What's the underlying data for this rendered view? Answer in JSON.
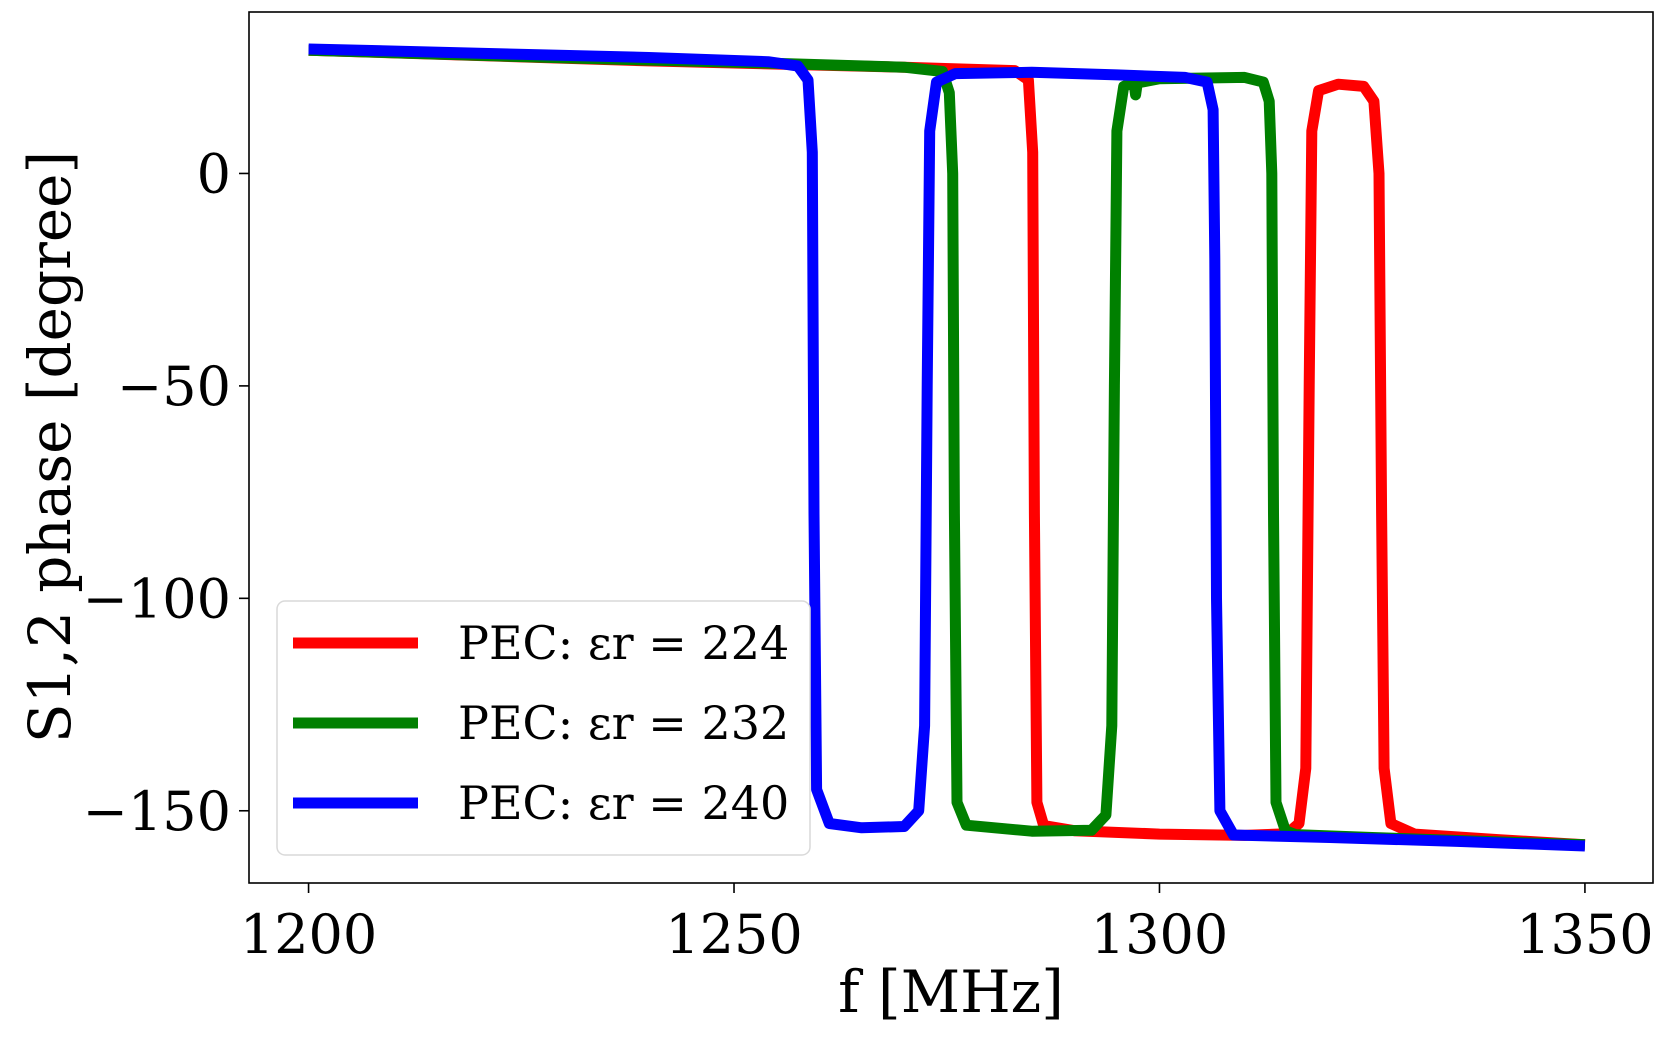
{
  "chart_data": {
    "type": "line",
    "title": "",
    "xlabel": "f [MHz]",
    "ylabel": "S1,2 phase [degree]",
    "xlim": [
      1193,
      1358
    ],
    "ylim": [
      -167,
      38
    ],
    "xticks": [
      1200,
      1250,
      1300,
      1350
    ],
    "yticks": [
      0,
      -50,
      -100,
      -150
    ],
    "xtick_labels": [
      "1200",
      "1250",
      "1300",
      "1350"
    ],
    "ytick_labels": [
      "0",
      "−50",
      "−100",
      "−150"
    ],
    "legend_position": "lower-left",
    "series": [
      {
        "name": "PEC: εr = 224",
        "color": "#ff0000",
        "points": [
          [
            1200,
            29
          ],
          [
            1240,
            26.5
          ],
          [
            1270,
            25
          ],
          [
            1283,
            24.2
          ],
          [
            1284.6,
            22
          ],
          [
            1285.1,
            5
          ],
          [
            1285.3,
            -80
          ],
          [
            1285.6,
            -148
          ],
          [
            1286.4,
            -153.5
          ],
          [
            1290,
            -154.7
          ],
          [
            1300,
            -155.5
          ],
          [
            1310,
            -155.8
          ],
          [
            1315,
            -155.4
          ],
          [
            1316.4,
            -153
          ],
          [
            1317.2,
            -140
          ],
          [
            1317.6,
            -50
          ],
          [
            1317.9,
            10
          ],
          [
            1318.7,
            19.5
          ],
          [
            1321,
            21
          ],
          [
            1324,
            20.5
          ],
          [
            1325.2,
            17
          ],
          [
            1325.8,
            0
          ],
          [
            1326.1,
            -80
          ],
          [
            1326.4,
            -140
          ],
          [
            1327.2,
            -153
          ],
          [
            1330,
            -155.5
          ],
          [
            1340,
            -156.8
          ],
          [
            1350,
            -158
          ]
        ]
      },
      {
        "name": "PEC: εr = 232",
        "color": "#008000",
        "points": [
          [
            1200,
            29
          ],
          [
            1230,
            27.2
          ],
          [
            1255,
            25.9
          ],
          [
            1270,
            25
          ],
          [
            1274.5,
            24
          ],
          [
            1275.3,
            19
          ],
          [
            1275.7,
            0
          ],
          [
            1275.9,
            -80
          ],
          [
            1276.2,
            -148
          ],
          [
            1277.3,
            -153.4
          ],
          [
            1285,
            -154.8
          ],
          [
            1292,
            -154.6
          ],
          [
            1293.7,
            -151
          ],
          [
            1294.4,
            -130
          ],
          [
            1294.7,
            -50
          ],
          [
            1295,
            10
          ],
          [
            1295.8,
            20.5
          ],
          [
            1297,
            21.5
          ],
          [
            1297.2,
            18.5
          ],
          [
            1297.4,
            21.3
          ],
          [
            1300,
            22.3
          ],
          [
            1310,
            22.6
          ],
          [
            1312.2,
            21.5
          ],
          [
            1312.9,
            17
          ],
          [
            1313.2,
            0
          ],
          [
            1313.4,
            -80
          ],
          [
            1313.7,
            -148
          ],
          [
            1314.8,
            -154.7
          ],
          [
            1316,
            -155.6
          ],
          [
            1325,
            -156.3
          ],
          [
            1335,
            -157
          ],
          [
            1350,
            -158
          ]
        ]
      },
      {
        "name": "PEC: εr = 240",
        "color": "#0000ff",
        "points": [
          [
            1200,
            29.3
          ],
          [
            1220,
            28.3
          ],
          [
            1240,
            27.3
          ],
          [
            1254,
            26.3
          ],
          [
            1257.5,
            25.3
          ],
          [
            1258.7,
            22
          ],
          [
            1259.2,
            5
          ],
          [
            1259.4,
            -80
          ],
          [
            1259.7,
            -145
          ],
          [
            1261.2,
            -153
          ],
          [
            1265,
            -154
          ],
          [
            1270,
            -153.7
          ],
          [
            1271.7,
            -150
          ],
          [
            1272.4,
            -130
          ],
          [
            1272.7,
            -50
          ],
          [
            1273,
            10
          ],
          [
            1273.8,
            21.5
          ],
          [
            1276,
            23.5
          ],
          [
            1285,
            23.8
          ],
          [
            1295,
            23.2
          ],
          [
            1303,
            22.6
          ],
          [
            1305.6,
            21.5
          ],
          [
            1306.3,
            15
          ],
          [
            1306.5,
            -20
          ],
          [
            1306.7,
            -100
          ],
          [
            1307.1,
            -150
          ],
          [
            1308.7,
            -155.7
          ],
          [
            1320,
            -156.3
          ],
          [
            1335,
            -157.2
          ],
          [
            1350,
            -158.3
          ]
        ]
      }
    ]
  }
}
